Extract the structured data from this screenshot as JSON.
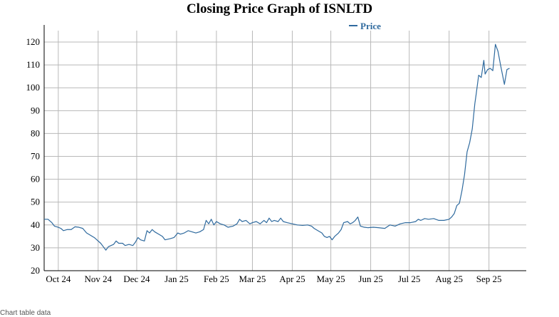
{
  "chart_data": {
    "type": "line",
    "title": "Closing Price Graph of ISNLTD",
    "xlabel": "",
    "ylabel": "",
    "ylim": [
      20,
      125
    ],
    "yticks": [
      20,
      30,
      40,
      50,
      60,
      70,
      80,
      90,
      100,
      110,
      120
    ],
    "xlim": [
      "2024-09-20",
      "2025-09-30"
    ],
    "xticks": [
      {
        "label": "Oct 24",
        "date": "2024-10-01"
      },
      {
        "label": "Nov 24",
        "date": "2024-11-01"
      },
      {
        "label": "Dec 24",
        "date": "2024-12-01"
      },
      {
        "label": "Jan 25",
        "date": "2025-01-01"
      },
      {
        "label": "Feb 25",
        "date": "2025-02-01"
      },
      {
        "label": "Mar 25",
        "date": "2025-03-01"
      },
      {
        "label": "Apr 25",
        "date": "2025-04-01"
      },
      {
        "label": "May 25",
        "date": "2025-05-01"
      },
      {
        "label": "Jun 25",
        "date": "2025-06-01"
      },
      {
        "label": "Jul 25",
        "date": "2025-07-01"
      },
      {
        "label": "Aug 25",
        "date": "2025-08-01"
      },
      {
        "label": "Sep 25",
        "date": "2025-09-01"
      }
    ],
    "grid": true,
    "legend": {
      "position": "top-center",
      "entries": [
        "Price"
      ]
    },
    "series": [
      {
        "name": "Price",
        "color": "#2f6a9e",
        "points": [
          [
            "2024-09-20",
            42.5
          ],
          [
            "2024-09-23",
            42.5
          ],
          [
            "2024-09-26",
            41.0
          ],
          [
            "2024-09-28",
            39.5
          ],
          [
            "2024-10-01",
            39.0
          ],
          [
            "2024-10-03",
            38.5
          ],
          [
            "2024-10-05",
            37.5
          ],
          [
            "2024-10-08",
            38.0
          ],
          [
            "2024-10-11",
            38.0
          ],
          [
            "2024-10-14",
            39.2
          ],
          [
            "2024-10-17",
            39.0
          ],
          [
            "2024-10-20",
            38.5
          ],
          [
            "2024-10-23",
            36.5
          ],
          [
            "2024-10-26",
            35.5
          ],
          [
            "2024-10-29",
            34.5
          ],
          [
            "2024-11-01",
            33.0
          ],
          [
            "2024-11-03",
            32.0
          ],
          [
            "2024-11-05",
            30.5
          ],
          [
            "2024-11-07",
            29.0
          ],
          [
            "2024-11-09",
            30.5
          ],
          [
            "2024-11-11",
            31.0
          ],
          [
            "2024-11-13",
            31.5
          ],
          [
            "2024-11-15",
            33.0
          ],
          [
            "2024-11-17",
            32.0
          ],
          [
            "2024-11-20",
            32.0
          ],
          [
            "2024-11-22",
            31.0
          ],
          [
            "2024-11-25",
            31.5
          ],
          [
            "2024-11-28",
            31.0
          ],
          [
            "2024-11-30",
            32.5
          ],
          [
            "2024-12-02",
            34.5
          ],
          [
            "2024-12-04",
            33.5
          ],
          [
            "2024-12-07",
            33.0
          ],
          [
            "2024-12-09",
            37.5
          ],
          [
            "2024-12-11",
            36.5
          ],
          [
            "2024-12-13",
            38.0
          ],
          [
            "2024-12-15",
            37.0
          ],
          [
            "2024-12-18",
            36.0
          ],
          [
            "2024-12-21",
            35.0
          ],
          [
            "2024-12-23",
            33.5
          ],
          [
            "2024-12-27",
            34.0
          ],
          [
            "2024-12-30",
            34.5
          ],
          [
            "2025-01-02",
            36.5
          ],
          [
            "2025-01-04",
            36.0
          ],
          [
            "2025-01-07",
            36.5
          ],
          [
            "2025-01-10",
            37.5
          ],
          [
            "2025-01-13",
            37.0
          ],
          [
            "2025-01-16",
            36.5
          ],
          [
            "2025-01-19",
            37.0
          ],
          [
            "2025-01-22",
            38.0
          ],
          [
            "2025-01-24",
            42.0
          ],
          [
            "2025-01-26",
            40.5
          ],
          [
            "2025-01-28",
            42.5
          ],
          [
            "2025-01-30",
            40.0
          ],
          [
            "2025-02-01",
            41.5
          ],
          [
            "2025-02-04",
            40.5
          ],
          [
            "2025-02-07",
            40.0
          ],
          [
            "2025-02-10",
            39.0
          ],
          [
            "2025-02-14",
            39.5
          ],
          [
            "2025-02-17",
            40.5
          ],
          [
            "2025-02-19",
            42.5
          ],
          [
            "2025-02-21",
            41.5
          ],
          [
            "2025-02-24",
            42.0
          ],
          [
            "2025-02-27",
            40.5
          ],
          [
            "2025-03-01",
            41.0
          ],
          [
            "2025-03-04",
            41.5
          ],
          [
            "2025-03-07",
            40.5
          ],
          [
            "2025-03-10",
            42.0
          ],
          [
            "2025-03-12",
            41.0
          ],
          [
            "2025-03-14",
            43.0
          ],
          [
            "2025-03-16",
            41.5
          ],
          [
            "2025-03-18",
            42.0
          ],
          [
            "2025-03-21",
            41.5
          ],
          [
            "2025-03-23",
            43.0
          ],
          [
            "2025-03-25",
            41.5
          ],
          [
            "2025-03-28",
            41.0
          ],
          [
            "2025-04-01",
            40.5
          ],
          [
            "2025-04-05",
            40.0
          ],
          [
            "2025-04-09",
            39.8
          ],
          [
            "2025-04-13",
            40.0
          ],
          [
            "2025-04-16",
            39.5
          ],
          [
            "2025-04-18",
            38.5
          ],
          [
            "2025-04-21",
            37.5
          ],
          [
            "2025-04-24",
            36.5
          ],
          [
            "2025-04-26",
            35.0
          ],
          [
            "2025-04-28",
            34.5
          ],
          [
            "2025-04-30",
            35.0
          ],
          [
            "2025-05-02",
            33.5
          ],
          [
            "2025-05-04",
            35.0
          ],
          [
            "2025-05-07",
            36.5
          ],
          [
            "2025-05-09",
            38.0
          ],
          [
            "2025-05-11",
            41.0
          ],
          [
            "2025-05-14",
            41.5
          ],
          [
            "2025-05-16",
            40.5
          ],
          [
            "2025-05-18",
            41.0
          ],
          [
            "2025-05-20",
            42.0
          ],
          [
            "2025-05-22",
            43.5
          ],
          [
            "2025-05-24",
            39.5
          ],
          [
            "2025-05-27",
            39.0
          ],
          [
            "2025-05-30",
            38.8
          ],
          [
            "2025-06-03",
            39.0
          ],
          [
            "2025-06-07",
            38.8
          ],
          [
            "2025-06-12",
            38.5
          ],
          [
            "2025-06-16",
            40.0
          ],
          [
            "2025-06-20",
            39.5
          ],
          [
            "2025-06-24",
            40.5
          ],
          [
            "2025-06-28",
            41.0
          ],
          [
            "2025-07-02",
            41.0
          ],
          [
            "2025-07-06",
            41.5
          ],
          [
            "2025-07-08",
            42.5
          ],
          [
            "2025-07-10",
            42.0
          ],
          [
            "2025-07-13",
            42.8
          ],
          [
            "2025-07-16",
            42.5
          ],
          [
            "2025-07-20",
            42.8
          ],
          [
            "2025-07-24",
            42.0
          ],
          [
            "2025-07-28",
            42.0
          ],
          [
            "2025-08-01",
            42.5
          ],
          [
            "2025-08-03",
            43.5
          ],
          [
            "2025-08-05",
            45.0
          ],
          [
            "2025-08-07",
            48.5
          ],
          [
            "2025-08-09",
            49.5
          ],
          [
            "2025-08-11",
            55.0
          ],
          [
            "2025-08-13",
            62.0
          ],
          [
            "2025-08-15",
            72.0
          ],
          [
            "2025-08-17",
            76.0
          ],
          [
            "2025-08-19",
            82.0
          ],
          [
            "2025-08-21",
            93.0
          ],
          [
            "2025-08-22",
            97.0
          ],
          [
            "2025-08-24",
            105.5
          ],
          [
            "2025-08-26",
            104.5
          ],
          [
            "2025-08-28",
            112.0
          ],
          [
            "2025-08-29",
            106.0
          ],
          [
            "2025-08-31",
            108.0
          ],
          [
            "2025-09-02",
            108.5
          ],
          [
            "2025-09-04",
            107.5
          ],
          [
            "2025-09-06",
            119.0
          ],
          [
            "2025-09-08",
            116.0
          ],
          [
            "2025-09-10",
            110.0
          ],
          [
            "2025-09-13",
            101.5
          ],
          [
            "2025-09-15",
            108.0
          ],
          [
            "2025-09-17",
            108.5
          ]
        ]
      }
    ]
  },
  "footer": {
    "text": "Chart table  data"
  }
}
